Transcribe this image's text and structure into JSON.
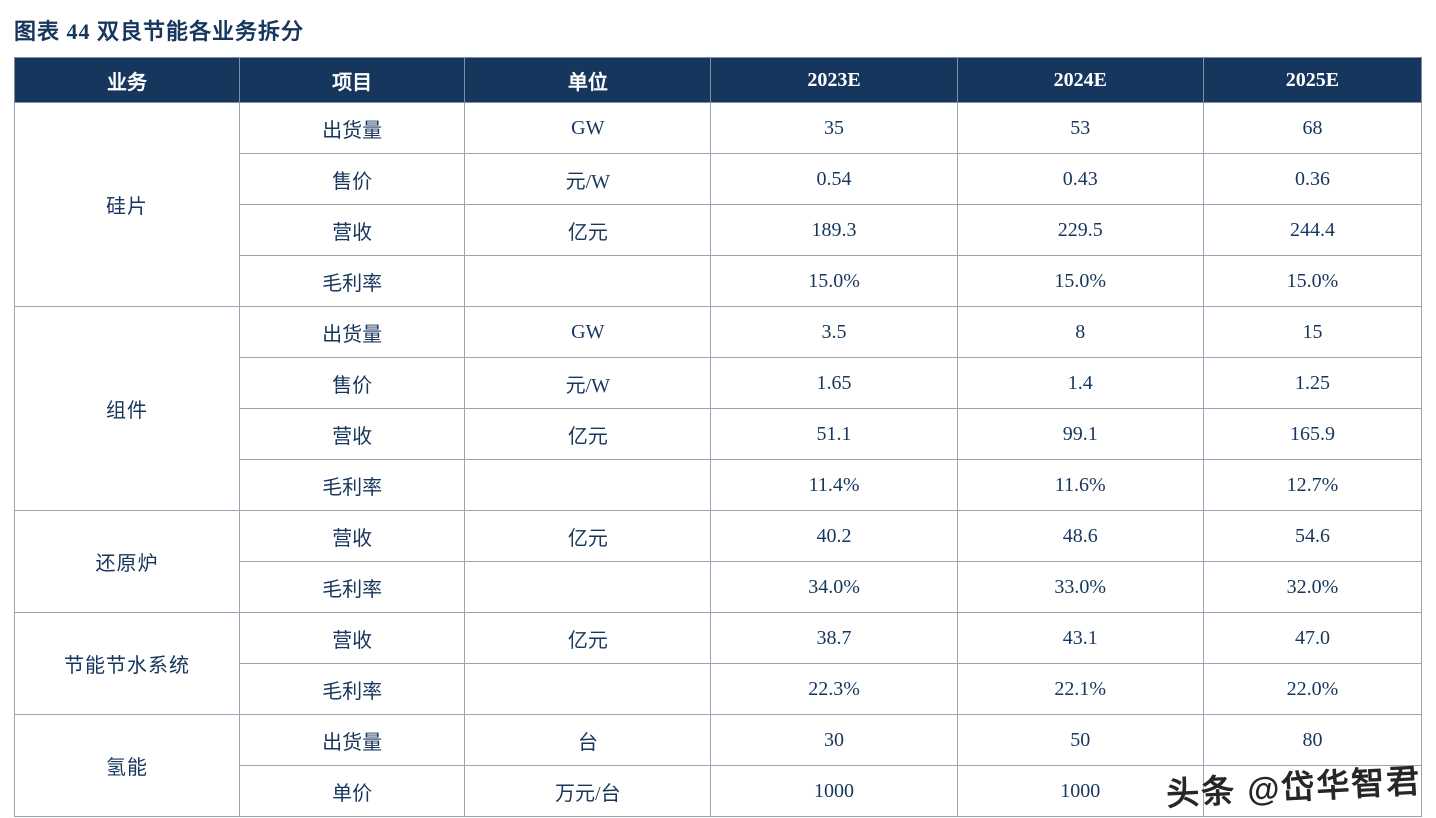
{
  "title": "图表 44  双良节能各业务拆分",
  "watermark": "头条 @岱华智君",
  "colors": {
    "header_bg": "#17365d",
    "text": "#17365d",
    "border": "#9aa5b4",
    "watermark_text": "#141414"
  },
  "chart_data": {
    "type": "table",
    "title": "图表 44  双良节能各业务拆分",
    "columns": [
      "业务",
      "项目",
      "单位",
      "2023E",
      "2024E",
      "2025E"
    ],
    "groups": [
      {
        "business": "硅片",
        "rows": [
          [
            "出货量",
            "GW",
            "35",
            "53",
            "68"
          ],
          [
            "售价",
            "元/W",
            "0.54",
            "0.43",
            "0.36"
          ],
          [
            "营收",
            "亿元",
            "189.3",
            "229.5",
            "244.4"
          ],
          [
            "毛利率",
            "",
            "15.0%",
            "15.0%",
            "15.0%"
          ]
        ]
      },
      {
        "business": "组件",
        "rows": [
          [
            "出货量",
            "GW",
            "3.5",
            "8",
            "15"
          ],
          [
            "售价",
            "元/W",
            "1.65",
            "1.4",
            "1.25"
          ],
          [
            "营收",
            "亿元",
            "51.1",
            "99.1",
            "165.9"
          ],
          [
            "毛利率",
            "",
            "11.4%",
            "11.6%",
            "12.7%"
          ]
        ]
      },
      {
        "business": "还原炉",
        "rows": [
          [
            "营收",
            "亿元",
            "40.2",
            "48.6",
            "54.6"
          ],
          [
            "毛利率",
            "",
            "34.0%",
            "33.0%",
            "32.0%"
          ]
        ]
      },
      {
        "business": "节能节水系统",
        "rows": [
          [
            "营收",
            "亿元",
            "38.7",
            "43.1",
            "47.0"
          ],
          [
            "毛利率",
            "",
            "22.3%",
            "22.1%",
            "22.0%"
          ]
        ]
      },
      {
        "business": "氢能",
        "rows": [
          [
            "出货量",
            "台",
            "30",
            "50",
            "80"
          ],
          [
            "单价",
            "万元/台",
            "1000",
            "1000",
            ""
          ]
        ]
      }
    ]
  }
}
